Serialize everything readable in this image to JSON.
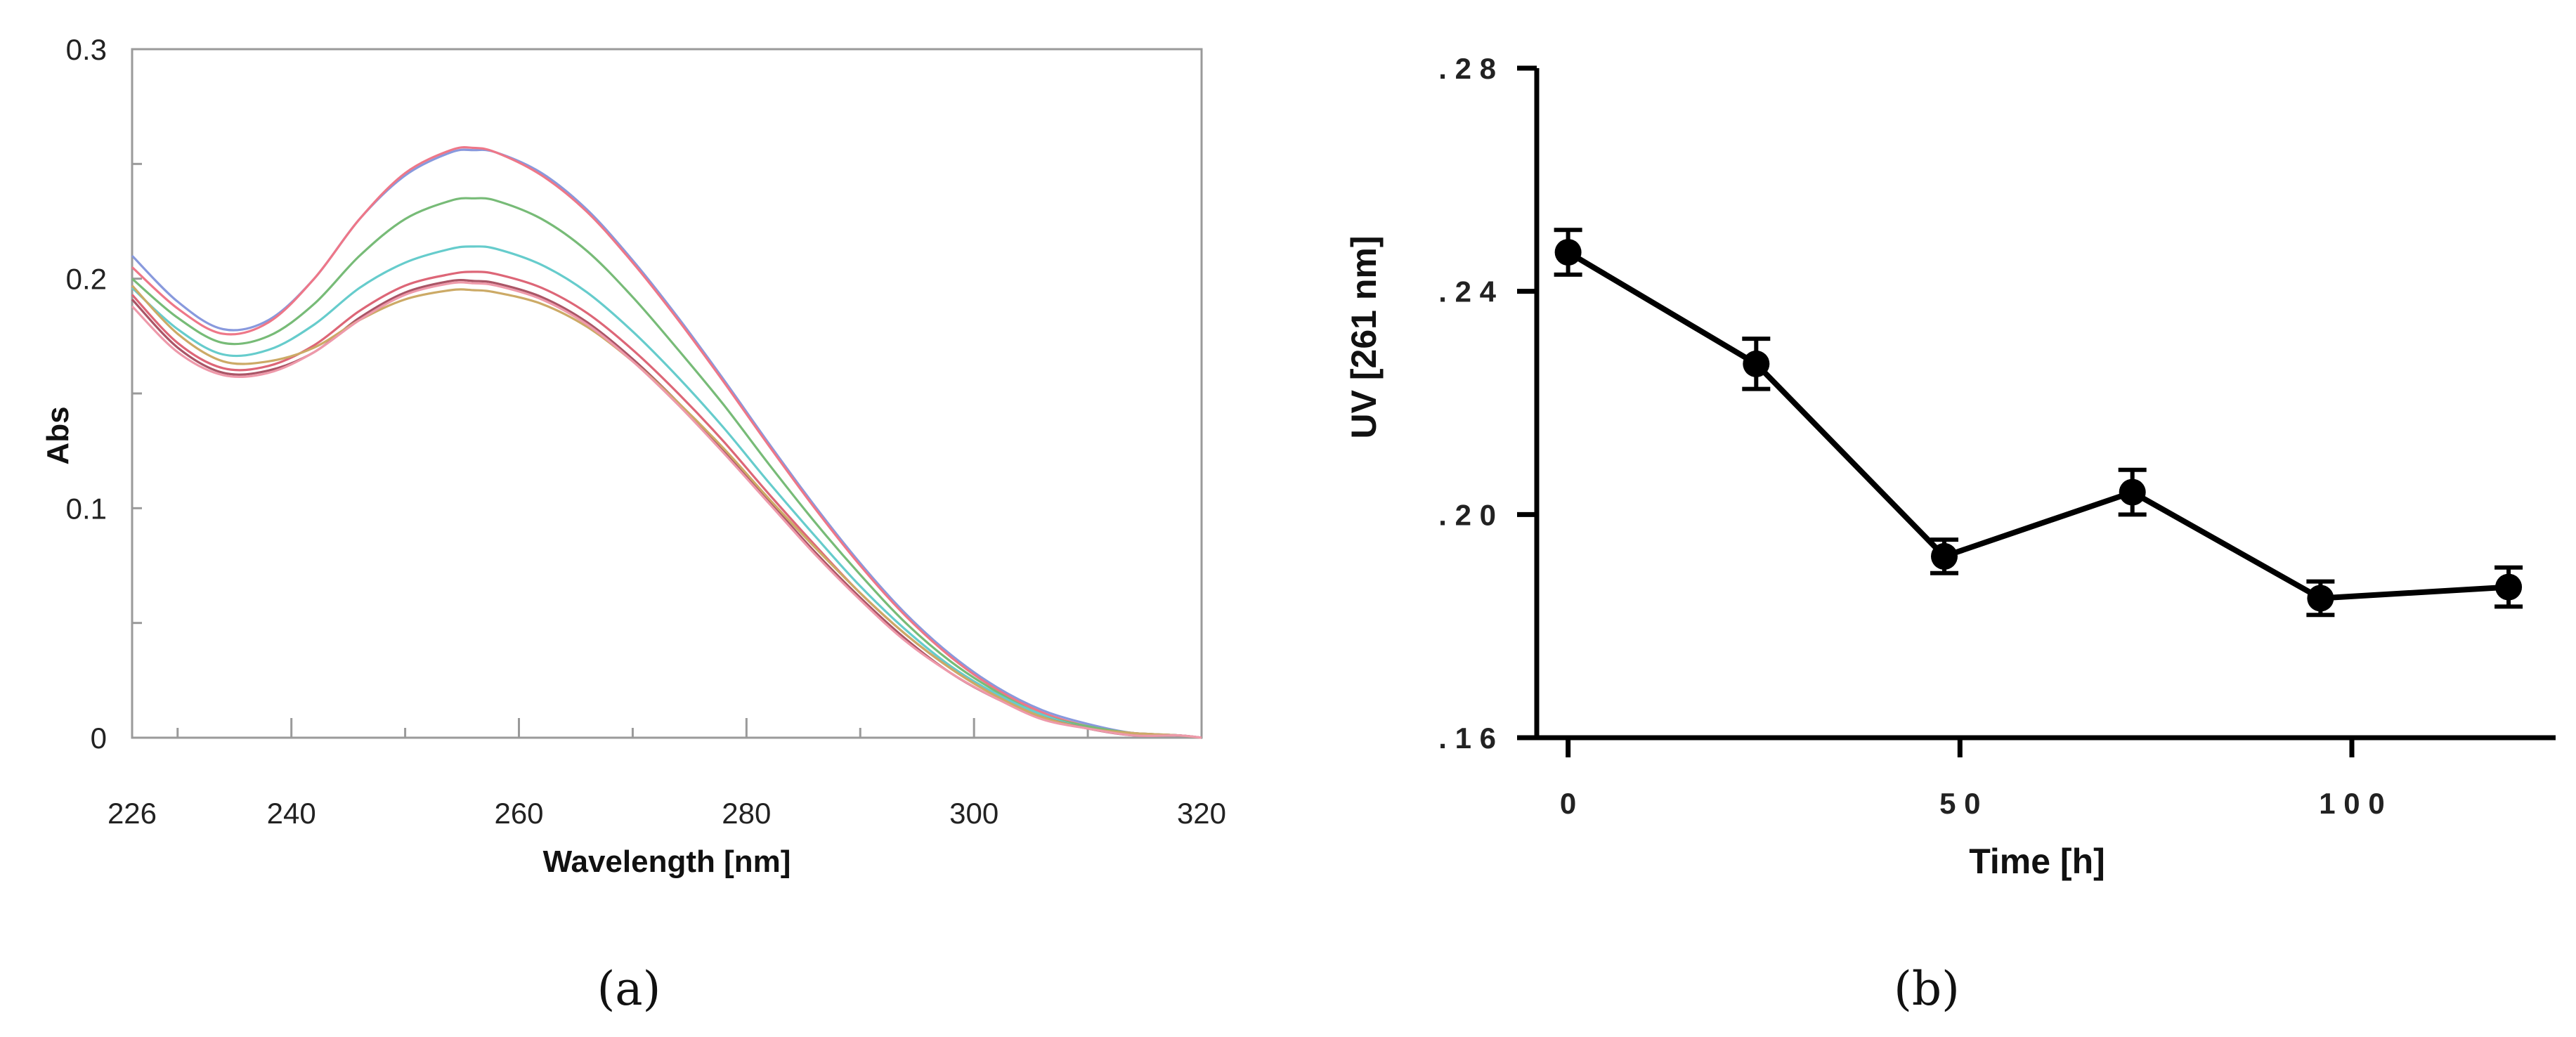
{
  "chart_data": [
    {
      "type": "line",
      "panel_label": "a",
      "xlabel": "Wavelength [nm]",
      "ylabel": "Abs",
      "xlim": [
        226,
        320
      ],
      "ylim": [
        0,
        0.3
      ],
      "x_tick_labels": [
        "226",
        "240",
        "260",
        "280",
        "300",
        "320"
      ],
      "y_tick_labels": [
        "0",
        "0.1",
        "0.2",
        "0.3"
      ],
      "x": [
        226,
        230,
        234,
        238,
        242,
        246,
        250,
        254,
        256,
        258,
        262,
        266,
        270,
        274,
        278,
        282,
        286,
        290,
        294,
        298,
        302,
        306,
        310,
        314,
        318,
        320
      ],
      "series": [
        {
          "color": "#8899dd",
          "values": [
            0.21,
            0.19,
            0.178,
            0.182,
            0.2,
            0.226,
            0.245,
            0.255,
            0.256,
            0.255,
            0.246,
            0.23,
            0.208,
            0.183,
            0.156,
            0.128,
            0.101,
            0.076,
            0.054,
            0.036,
            0.022,
            0.012,
            0.006,
            0.002,
            0.001,
            0.0
          ]
        },
        {
          "color": "#ee7788",
          "values": [
            0.205,
            0.187,
            0.176,
            0.181,
            0.2,
            0.226,
            0.246,
            0.256,
            0.257,
            0.255,
            0.245,
            0.229,
            0.207,
            0.182,
            0.155,
            0.127,
            0.1,
            0.075,
            0.053,
            0.035,
            0.021,
            0.011,
            0.005,
            0.002,
            0.001,
            0.0
          ]
        },
        {
          "color": "#77bb77",
          "values": [
            0.2,
            0.183,
            0.172,
            0.175,
            0.189,
            0.21,
            0.226,
            0.234,
            0.235,
            0.234,
            0.226,
            0.212,
            0.192,
            0.169,
            0.145,
            0.119,
            0.094,
            0.071,
            0.05,
            0.033,
            0.02,
            0.01,
            0.005,
            0.002,
            0.001,
            0.0
          ]
        },
        {
          "color": "#66cccc",
          "values": [
            0.196,
            0.178,
            0.167,
            0.169,
            0.18,
            0.196,
            0.207,
            0.213,
            0.214,
            0.213,
            0.206,
            0.194,
            0.177,
            0.157,
            0.135,
            0.111,
            0.088,
            0.066,
            0.047,
            0.031,
            0.019,
            0.01,
            0.004,
            0.002,
            0.001,
            0.0
          ]
        },
        {
          "color": "#dd6677",
          "values": [
            0.193,
            0.172,
            0.161,
            0.162,
            0.171,
            0.186,
            0.197,
            0.202,
            0.203,
            0.202,
            0.196,
            0.185,
            0.169,
            0.15,
            0.129,
            0.106,
            0.084,
            0.063,
            0.045,
            0.03,
            0.018,
            0.009,
            0.004,
            0.002,
            0.001,
            0.0
          ]
        },
        {
          "color": "#aa5566",
          "values": [
            0.191,
            0.17,
            0.159,
            0.16,
            0.168,
            0.183,
            0.194,
            0.199,
            0.199,
            0.198,
            0.192,
            0.181,
            0.165,
            0.146,
            0.125,
            0.103,
            0.081,
            0.061,
            0.043,
            0.028,
            0.017,
            0.009,
            0.004,
            0.001,
            0.001,
            0.0
          ]
        },
        {
          "color": "#ccaa66",
          "values": [
            0.197,
            0.176,
            0.164,
            0.164,
            0.17,
            0.182,
            0.191,
            0.195,
            0.195,
            0.194,
            0.189,
            0.179,
            0.164,
            0.146,
            0.126,
            0.104,
            0.083,
            0.063,
            0.045,
            0.03,
            0.018,
            0.009,
            0.004,
            0.002,
            0.001,
            0.0
          ]
        },
        {
          "color": "#ee99aa",
          "values": [
            0.188,
            0.168,
            0.158,
            0.159,
            0.168,
            0.182,
            0.193,
            0.198,
            0.198,
            0.197,
            0.191,
            0.18,
            0.164,
            0.145,
            0.124,
            0.102,
            0.08,
            0.06,
            0.042,
            0.028,
            0.017,
            0.008,
            0.004,
            0.001,
            0.001,
            0.0
          ]
        }
      ]
    },
    {
      "type": "line",
      "panel_label": "b",
      "xlabel": "Time [h]",
      "ylabel": "UV [261 nm]",
      "ylim": [
        0.16,
        0.28
      ],
      "y_ticks": [
        0.16,
        0.2,
        0.24,
        0.28
      ],
      "y_tick_labels": [
        ". 1 6",
        ". 2 0",
        ". 2 4",
        ". 2 8"
      ],
      "x_ticks": [
        0,
        50,
        100
      ],
      "x_tick_labels": [
        "0",
        "5 0",
        "1 0 0"
      ],
      "xlim": [
        -4,
        126
      ],
      "markers": true,
      "error_bars": true,
      "points": [
        {
          "x": 0,
          "y": 0.247,
          "err": 0.004
        },
        {
          "x": 24,
          "y": 0.227,
          "err": 0.0045
        },
        {
          "x": 48,
          "y": 0.1925,
          "err": 0.003
        },
        {
          "x": 72,
          "y": 0.204,
          "err": 0.004
        },
        {
          "x": 96,
          "y": 0.185,
          "err": 0.003
        },
        {
          "x": 120,
          "y": 0.187,
          "err": 0.0035
        }
      ]
    }
  ],
  "captions": {
    "a": "(a)",
    "b": "(b)"
  }
}
